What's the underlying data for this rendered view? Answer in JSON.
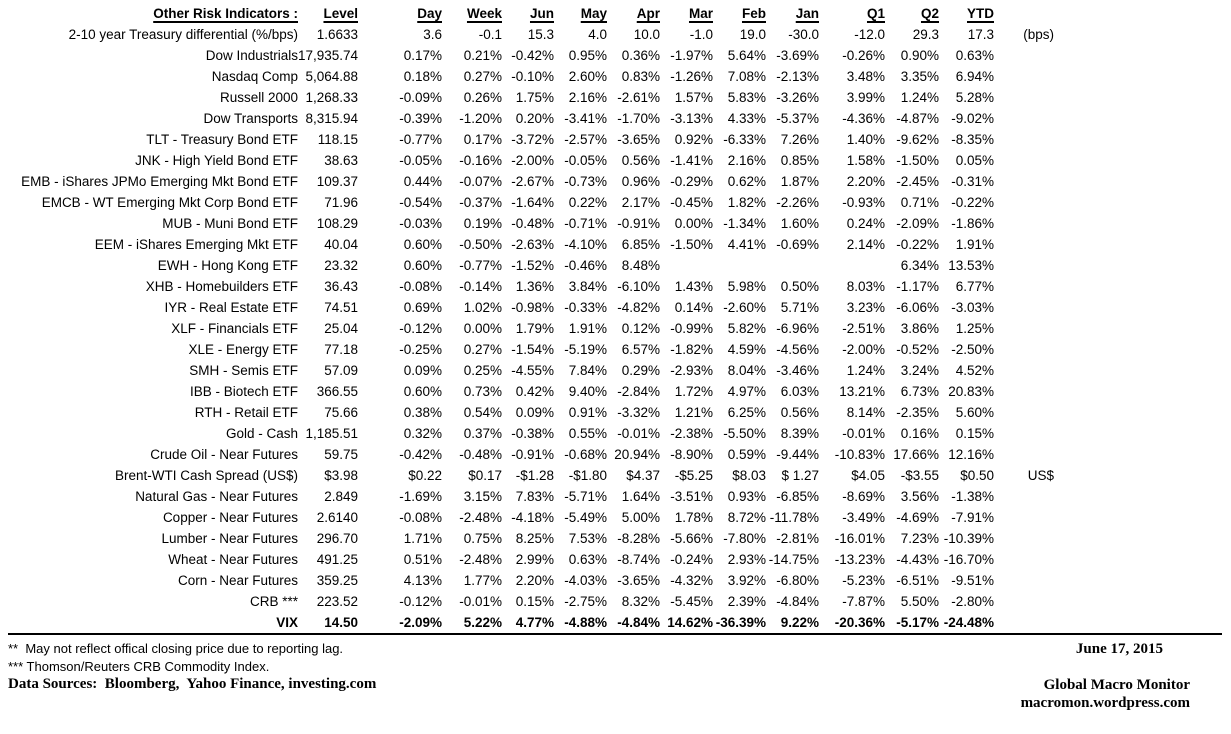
{
  "colors": {
    "text": "#000000",
    "background": "#ffffff"
  },
  "table": {
    "title": "Other Risk Indicators :",
    "columns": [
      "Level",
      "Day",
      "Week",
      "Jun",
      "May",
      "Apr",
      "Mar",
      "Feb",
      "Jan",
      "Q1",
      "Q2",
      "YTD"
    ],
    "rows": [
      {
        "label": "2-10 year Treasury differential (%/bps)",
        "level": "1.6633",
        "values": [
          "3.6",
          "-0.1",
          "15.3",
          "4.0",
          "10.0",
          "-1.0",
          "19.0",
          "-30.0",
          "-12.0",
          "29.3",
          "17.3"
        ],
        "note": "(bps)",
        "bold": false
      },
      {
        "label": "Dow Industrials",
        "level": "17,935.74",
        "values": [
          "0.17%",
          "0.21%",
          "-0.42%",
          "0.95%",
          "0.36%",
          "-1.97%",
          "5.64%",
          "-3.69%",
          "-0.26%",
          "0.90%",
          "0.63%"
        ],
        "note": "",
        "bold": false
      },
      {
        "label": "Nasdaq Comp",
        "level": "5,064.88",
        "values": [
          "0.18%",
          "0.27%",
          "-0.10%",
          "2.60%",
          "0.83%",
          "-1.26%",
          "7.08%",
          "-2.13%",
          "3.48%",
          "3.35%",
          "6.94%"
        ],
        "note": "",
        "bold": false
      },
      {
        "label": "Russell 2000",
        "level": "1,268.33",
        "values": [
          "-0.09%",
          "0.26%",
          "1.75%",
          "2.16%",
          "-2.61%",
          "1.57%",
          "5.83%",
          "-3.26%",
          "3.99%",
          "1.24%",
          "5.28%"
        ],
        "note": "",
        "bold": false
      },
      {
        "label": "Dow Transports",
        "level": "8,315.94",
        "values": [
          "-0.39%",
          "-1.20%",
          "0.20%",
          "-3.41%",
          "-1.70%",
          "-3.13%",
          "4.33%",
          "-5.37%",
          "-4.36%",
          "-4.87%",
          "-9.02%"
        ],
        "note": "",
        "bold": false
      },
      {
        "label": "TLT - Treasury Bond ETF",
        "level": "118.15",
        "values": [
          "-0.77%",
          "0.17%",
          "-3.72%",
          "-2.57%",
          "-3.65%",
          "0.92%",
          "-6.33%",
          "7.26%",
          "1.40%",
          "-9.62%",
          "-8.35%"
        ],
        "note": "",
        "bold": false
      },
      {
        "label": "JNK - High Yield Bond ETF",
        "level": "38.63",
        "values": [
          "-0.05%",
          "-0.16%",
          "-2.00%",
          "-0.05%",
          "0.56%",
          "-1.41%",
          "2.16%",
          "0.85%",
          "1.58%",
          "-1.50%",
          "0.05%"
        ],
        "note": "",
        "bold": false
      },
      {
        "label": "EMB - iShares JPMo Emerging Mkt Bond ETF",
        "level": "109.37",
        "values": [
          "0.44%",
          "-0.07%",
          "-2.67%",
          "-0.73%",
          "0.96%",
          "-0.29%",
          "0.62%",
          "1.87%",
          "2.20%",
          "-2.45%",
          "-0.31%"
        ],
        "note": "",
        "bold": false
      },
      {
        "label": "EMCB - WT Emerging Mkt Corp Bond ETF",
        "level": "71.96",
        "values": [
          "-0.54%",
          "-0.37%",
          "-1.64%",
          "0.22%",
          "2.17%",
          "-0.45%",
          "1.82%",
          "-2.26%",
          "-0.93%",
          "0.71%",
          "-0.22%"
        ],
        "note": "",
        "bold": false
      },
      {
        "label": "MUB - Muni Bond ETF",
        "level": "108.29",
        "values": [
          "-0.03%",
          "0.19%",
          "-0.48%",
          "-0.71%",
          "-0.91%",
          "0.00%",
          "-1.34%",
          "1.60%",
          "0.24%",
          "-2.09%",
          "-1.86%"
        ],
        "note": "",
        "bold": false
      },
      {
        "label": "EEM - iShares Emerging Mkt ETF",
        "level": "40.04",
        "values": [
          "0.60%",
          "-0.50%",
          "-2.63%",
          "-4.10%",
          "6.85%",
          "-1.50%",
          "4.41%",
          "-0.69%",
          "2.14%",
          "-0.22%",
          "1.91%"
        ],
        "note": "",
        "bold": false
      },
      {
        "label": "EWH - Hong Kong ETF",
        "level": "23.32",
        "values": [
          "0.60%",
          "-0.77%",
          "-1.52%",
          "-0.46%",
          "8.48%",
          "",
          "",
          "",
          "",
          "6.34%",
          "13.53%"
        ],
        "note": "",
        "bold": false
      },
      {
        "label": "XHB - Homebuilders ETF",
        "level": "36.43",
        "values": [
          "-0.08%",
          "-0.14%",
          "1.36%",
          "3.84%",
          "-6.10%",
          "1.43%",
          "5.98%",
          "0.50%",
          "8.03%",
          "-1.17%",
          "6.77%"
        ],
        "note": "",
        "bold": false
      },
      {
        "label": "IYR - Real Estate ETF",
        "level": "74.51",
        "values": [
          "0.69%",
          "1.02%",
          "-0.98%",
          "-0.33%",
          "-4.82%",
          "0.14%",
          "-2.60%",
          "5.71%",
          "3.23%",
          "-6.06%",
          "-3.03%"
        ],
        "note": "",
        "bold": false
      },
      {
        "label": "XLF - Financials ETF",
        "level": "25.04",
        "values": [
          "-0.12%",
          "0.00%",
          "1.79%",
          "1.91%",
          "0.12%",
          "-0.99%",
          "5.82%",
          "-6.96%",
          "-2.51%",
          "3.86%",
          "1.25%"
        ],
        "note": "",
        "bold": false
      },
      {
        "label": "XLE - Energy ETF",
        "level": "77.18",
        "values": [
          "-0.25%",
          "0.27%",
          "-1.54%",
          "-5.19%",
          "6.57%",
          "-1.82%",
          "4.59%",
          "-4.56%",
          "-2.00%",
          "-0.52%",
          "-2.50%"
        ],
        "note": "",
        "bold": false
      },
      {
        "label": "SMH - Semis ETF",
        "level": "57.09",
        "values": [
          "0.09%",
          "0.25%",
          "-4.55%",
          "7.84%",
          "0.29%",
          "-2.93%",
          "8.04%",
          "-3.46%",
          "1.24%",
          "3.24%",
          "4.52%"
        ],
        "note": "",
        "bold": false
      },
      {
        "label": "IBB - Biotech ETF",
        "level": "366.55",
        "values": [
          "0.60%",
          "0.73%",
          "0.42%",
          "9.40%",
          "-2.84%",
          "1.72%",
          "4.97%",
          "6.03%",
          "13.21%",
          "6.73%",
          "20.83%"
        ],
        "note": "",
        "bold": false
      },
      {
        "label": "RTH - Retail ETF",
        "level": "75.66",
        "values": [
          "0.38%",
          "0.54%",
          "0.09%",
          "0.91%",
          "-3.32%",
          "1.21%",
          "6.25%",
          "0.56%",
          "8.14%",
          "-2.35%",
          "5.60%"
        ],
        "note": "",
        "bold": false
      },
      {
        "label": "Gold - Cash",
        "level": "1,185.51",
        "values": [
          "0.32%",
          "0.37%",
          "-0.38%",
          "0.55%",
          "-0.01%",
          "-2.38%",
          "-5.50%",
          "8.39%",
          "-0.01%",
          "0.16%",
          "0.15%"
        ],
        "note": "",
        "bold": false
      },
      {
        "label": "Crude Oil - Near Futures",
        "level": "59.75",
        "values": [
          "-0.42%",
          "-0.48%",
          "-0.91%",
          "-0.68%",
          "20.94%",
          "-8.90%",
          "0.59%",
          "-9.44%",
          "-10.83%",
          "17.66%",
          "12.16%"
        ],
        "note": "",
        "bold": false
      },
      {
        "label": "Brent-WTI Cash Spread (US$)",
        "level": "$3.98",
        "values": [
          "$0.22",
          "$0.17",
          "-$1.28",
          "-$1.80",
          "$4.37",
          "-$5.25",
          "$8.03",
          "$ 1.27",
          "$4.05",
          "-$3.55",
          "$0.50"
        ],
        "note": "US$",
        "bold": false
      },
      {
        "label": "Natural Gas - Near Futures",
        "level": "2.849",
        "values": [
          "-1.69%",
          "3.15%",
          "7.83%",
          "-5.71%",
          "1.64%",
          "-3.51%",
          "0.93%",
          "-6.85%",
          "-8.69%",
          "3.56%",
          "-1.38%"
        ],
        "note": "",
        "bold": false
      },
      {
        "label": "Copper - Near Futures",
        "level": "2.6140",
        "values": [
          "-0.08%",
          "-2.48%",
          "-4.18%",
          "-5.49%",
          "5.00%",
          "1.78%",
          "8.72%",
          "-11.78%",
          "-3.49%",
          "-4.69%",
          "-7.91%"
        ],
        "note": "",
        "bold": false
      },
      {
        "label": "Lumber - Near Futures",
        "level": "296.70",
        "values": [
          "1.71%",
          "0.75%",
          "8.25%",
          "7.53%",
          "-8.28%",
          "-5.66%",
          "-7.80%",
          "-2.81%",
          "-16.01%",
          "7.23%",
          "-10.39%"
        ],
        "note": "",
        "bold": false
      },
      {
        "label": "Wheat - Near Futures",
        "level": "491.25",
        "values": [
          "0.51%",
          "-2.48%",
          "2.99%",
          "0.63%",
          "-8.74%",
          "-0.24%",
          "2.93%",
          "-14.75%",
          "-13.23%",
          "-4.43%",
          "-16.70%"
        ],
        "note": "",
        "bold": false
      },
      {
        "label": "Corn - Near Futures",
        "level": "359.25",
        "values": [
          "4.13%",
          "1.77%",
          "2.20%",
          "-4.03%",
          "-3.65%",
          "-4.32%",
          "3.92%",
          "-6.80%",
          "-5.23%",
          "-6.51%",
          "-9.51%"
        ],
        "note": "",
        "bold": false
      },
      {
        "label": "CRB ***",
        "level": "223.52",
        "values": [
          "-0.12%",
          "-0.01%",
          "0.15%",
          "-2.75%",
          "8.32%",
          "-5.45%",
          "2.39%",
          "-4.84%",
          "-7.87%",
          "5.50%",
          "-2.80%"
        ],
        "note": "",
        "bold": false
      },
      {
        "label": "VIX",
        "level": "14.50",
        "values": [
          "-2.09%",
          "5.22%",
          "4.77%",
          "-4.88%",
          "-4.84%",
          "14.62%",
          "-36.39%",
          "9.22%",
          "-20.36%",
          "-5.17%",
          "-24.48%"
        ],
        "note": "",
        "bold": true
      }
    ]
  },
  "footnotes": [
    "**  May not reflect offical closing price due to reporting lag.",
    "*** Thomson/Reuters CRB Commodity Index."
  ],
  "footer": {
    "data_sources": "Data Sources:  Bloomberg,  Yahoo Finance, investing.com",
    "date": "June 17, 2015",
    "brand": "Global Macro Monitor",
    "url": "macromon.wordpress.com"
  }
}
